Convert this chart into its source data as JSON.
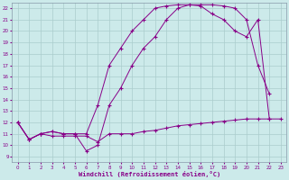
{
  "xlabel": "Windchill (Refroidissement éolien,°C)",
  "bg_color": "#cceaea",
  "line_color": "#880088",
  "grid_color": "#aacccc",
  "xlim": [
    -0.5,
    23.5
  ],
  "ylim": [
    8.5,
    22.5
  ],
  "xticks": [
    0,
    1,
    2,
    3,
    4,
    5,
    6,
    7,
    8,
    9,
    10,
    11,
    12,
    13,
    14,
    15,
    16,
    17,
    18,
    19,
    20,
    21,
    22,
    23
  ],
  "yticks": [
    9,
    10,
    11,
    12,
    13,
    14,
    15,
    16,
    17,
    18,
    19,
    20,
    21,
    22
  ],
  "line1_x": [
    0,
    1,
    2,
    3,
    4,
    5,
    6,
    7,
    8,
    9,
    10,
    11,
    12,
    13,
    14,
    15,
    16,
    17,
    18,
    19,
    20,
    21,
    22,
    23
  ],
  "line1_y": [
    12,
    10.5,
    11,
    10.8,
    10.8,
    10.8,
    10.8,
    10.3,
    11,
    11,
    11,
    11.2,
    11.3,
    11.5,
    11.7,
    11.8,
    11.9,
    12,
    12.1,
    12.2,
    12.3,
    12.3,
    12.3,
    12.3
  ],
  "line2_x": [
    0,
    1,
    2,
    3,
    4,
    5,
    6,
    7,
    8,
    9,
    10,
    11,
    12,
    13,
    14,
    15,
    16,
    17,
    18,
    19,
    20,
    21,
    22
  ],
  "line2_y": [
    12,
    10.5,
    11,
    11.2,
    11,
    11,
    9.5,
    10,
    13.5,
    15,
    17,
    18.5,
    19.5,
    21,
    22,
    22.3,
    22.3,
    22.3,
    22.2,
    22,
    21,
    17,
    14.5
  ],
  "line3_x": [
    0,
    1,
    2,
    3,
    4,
    5,
    6,
    7,
    8,
    9,
    10,
    11,
    12,
    13,
    14,
    15,
    16,
    17,
    18,
    19,
    20,
    21,
    22
  ],
  "line3_y": [
    12,
    10.5,
    11,
    11.2,
    11,
    11,
    11,
    13.5,
    17,
    18.5,
    20,
    21,
    22,
    22.2,
    22.3,
    22.3,
    22.2,
    21.5,
    21,
    20,
    19.5,
    21,
    12.3
  ]
}
